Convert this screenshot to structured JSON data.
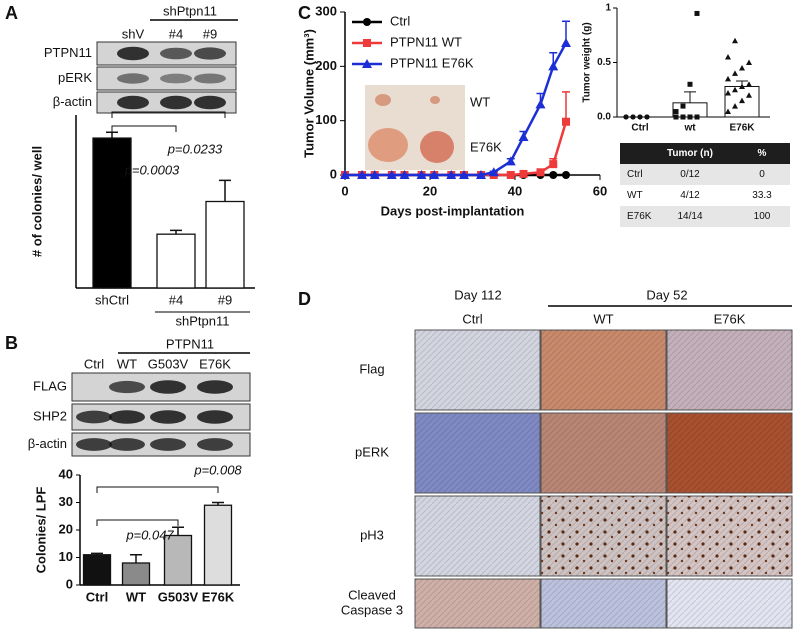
{
  "panels": {
    "A": {
      "label": "A",
      "blot": {
        "group_label": "shPtpn11",
        "lanes": [
          "shV",
          "#4",
          "#9"
        ],
        "rows": [
          "PTPN11",
          "pERK",
          "β-actin"
        ]
      },
      "chart": {
        "type": "bar",
        "ylabel": "# of colonies/ well",
        "categories": [
          "shCtrl",
          "#4",
          "#9"
        ],
        "group_label": "shPtpn11",
        "values": [
          39,
          14,
          22.5
        ],
        "errors": [
          1.5,
          1,
          5.5
        ],
        "ylim": [
          0,
          45
        ],
        "annotations": [
          "p=0.0003",
          "p=0.0233"
        ]
      }
    },
    "B": {
      "label": "B",
      "blot": {
        "group_label": "PTPN11",
        "lanes": [
          "Ctrl",
          "WT",
          "G503V",
          "E76K"
        ],
        "rows": [
          "FLAG",
          "SHP2",
          "β-actin"
        ]
      },
      "chart": {
        "type": "bar",
        "ylabel": "Colonies/ LPF",
        "categories": [
          "Ctrl",
          "WT",
          "G503V",
          "E76K"
        ],
        "values": [
          11,
          8,
          18,
          29
        ],
        "errors": [
          0.5,
          3,
          3,
          1
        ],
        "colors": [
          "#111111",
          "#8a8a8a",
          "#b8b8b8",
          "#dddddd"
        ],
        "ylim": [
          0,
          40
        ],
        "yticks": [
          0,
          10,
          20,
          30,
          40
        ],
        "annotations": [
          "p=0.047",
          "p=0.008"
        ]
      }
    },
    "C": {
      "label": "C",
      "volume": {
        "type": "line",
        "ylabel": "Tumor Volume (mm³)",
        "xlabel": "Days post-implantation",
        "xlim": [
          0,
          60
        ],
        "xticks": [
          0,
          20,
          40,
          60
        ],
        "ylim": [
          0,
          300
        ],
        "yticks": [
          0,
          100,
          200,
          300
        ],
        "x": [
          0,
          4,
          7,
          11,
          14,
          18,
          21,
          25,
          28,
          32,
          35,
          39,
          42,
          46,
          49,
          52
        ],
        "inset_labels": [
          "WT",
          "E76K"
        ],
        "series": [
          {
            "name": "Ctrl",
            "color": "#000000",
            "marker": "circle",
            "values": [
              0,
              0,
              0,
              0,
              0,
              0,
              0,
              0,
              0,
              0,
              0,
              0,
              0,
              0,
              0,
              0
            ],
            "errors": [
              0,
              0,
              0,
              0,
              0,
              0,
              0,
              0,
              0,
              0,
              0,
              0,
              0,
              0,
              0,
              0
            ]
          },
          {
            "name": "PTPN11 WT",
            "color": "#ee3a3a",
            "marker": "square",
            "values": [
              0,
              0,
              0,
              0,
              0,
              0,
              0,
              0,
              0,
              0,
              0,
              0,
              2,
              5,
              20,
              98
            ],
            "errors": [
              0,
              0,
              0,
              0,
              0,
              0,
              0,
              0,
              0,
              0,
              0,
              0,
              1,
              3,
              10,
              55
            ]
          },
          {
            "name": "PTPN11 E76K",
            "color": "#1c2fd6",
            "marker": "triangle",
            "values": [
              0,
              0,
              0,
              0,
              0,
              0,
              0,
              0,
              0,
              0,
              5,
              25,
              70,
              130,
              200,
              243
            ],
            "errors": [
              0,
              0,
              0,
              0,
              0,
              0,
              0,
              0,
              0,
              0,
              2,
              5,
              10,
              20,
              25,
              40
            ]
          }
        ]
      },
      "weight": {
        "type": "bar-scatter",
        "ylabel": "Tumor weight (g)",
        "categories": [
          "Ctrl",
          "wt",
          "E76K"
        ],
        "values": [
          0,
          0.13,
          0.28
        ],
        "errors": [
          0,
          0.1,
          0.05
        ],
        "points": [
          [
            0,
            0,
            0,
            0,
            0,
            0,
            0,
            0,
            0,
            0,
            0,
            0
          ],
          [
            0,
            0,
            0,
            0,
            0,
            0,
            0,
            0,
            0.05,
            0.1,
            0.3,
            0.95
          ],
          [
            0.05,
            0.1,
            0.15,
            0.2,
            0.22,
            0.25,
            0.28,
            0.3,
            0.35,
            0.4,
            0.45,
            0.5,
            0.55,
            0.7
          ]
        ],
        "ylim": [
          0,
          1
        ],
        "yticks": [
          {
            "value": 0,
            "label": "0.0"
          },
          0.5,
          1
        ]
      },
      "table": {
        "columns": [
          "Tumor (n)",
          "%"
        ],
        "rows": [
          [
            "Ctrl",
            "0/12",
            "0"
          ],
          [
            "WT",
            "4/12",
            "33.3"
          ],
          [
            "E76K",
            "14/14",
            "100"
          ]
        ]
      }
    },
    "D": {
      "label": "D",
      "groups": [
        "Day 112",
        "Day 52"
      ],
      "columns": [
        "Ctrl",
        "WT",
        "E76K"
      ],
      "rows": [
        "Flag",
        "pERK",
        "pH3",
        "Cleaved Caspase 3"
      ]
    }
  }
}
